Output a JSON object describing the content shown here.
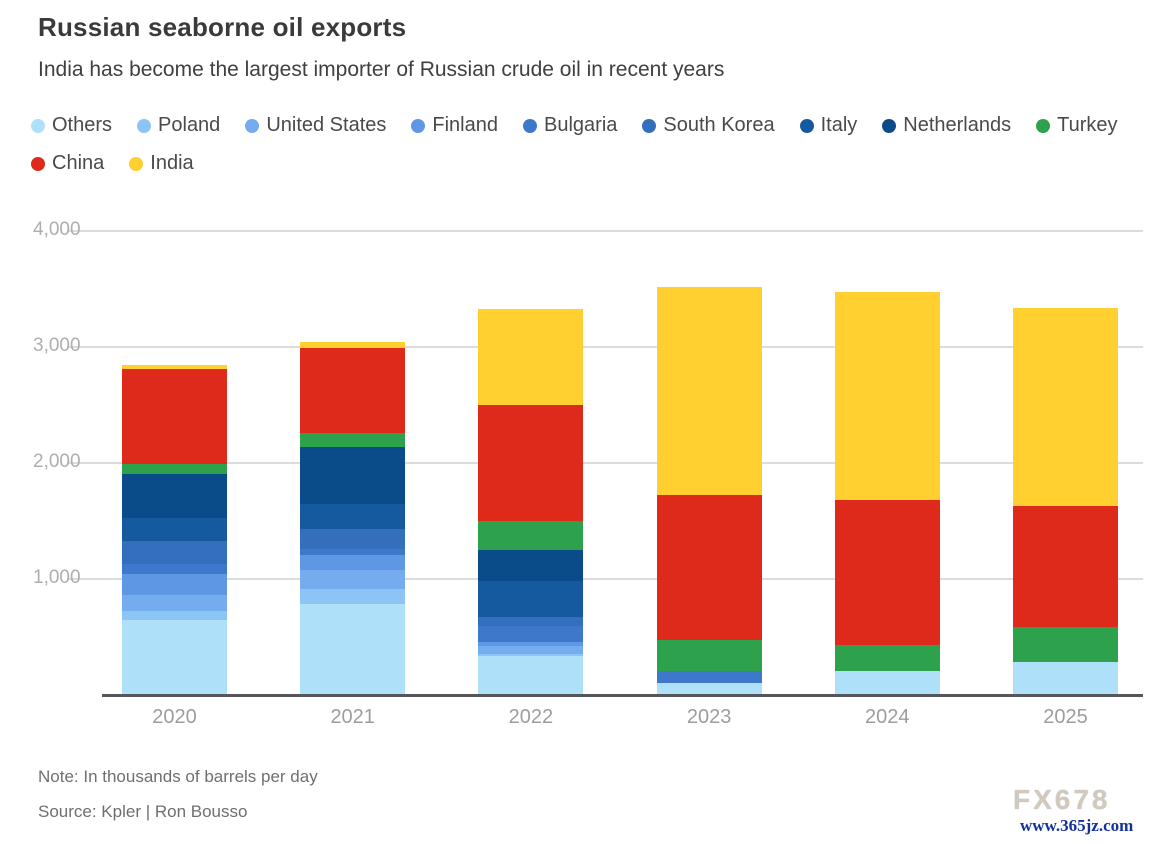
{
  "title": "Russian seaborne oil exports",
  "subtitle": "India has become the largest importer of Russian crude oil in recent years",
  "note": "Note: In thousands of barrels per day",
  "source": "Source: Kpler | Ron Bousso",
  "watermark": {
    "line1": "FX678",
    "line2": "www.365jz.com"
  },
  "chart_data": {
    "type": "bar",
    "stacked": true,
    "title": "Russian seaborne oil exports",
    "unit": "thousands of barrels per day",
    "categories": [
      "2020",
      "2021",
      "2022",
      "2023",
      "2024",
      "2025"
    ],
    "ylim": [
      0,
      4000
    ],
    "yticks": [
      1000,
      2000,
      3000,
      4000
    ],
    "ytick_labels": [
      "1,000",
      "2,000",
      "3,000",
      "4,000"
    ],
    "grid": "horizontal",
    "legend_position": "top",
    "legend_row_break": 9,
    "series": [
      {
        "name": "Others",
        "color": "#AEE0FA",
        "values": [
          645,
          780,
          335,
          100,
          205,
          280
        ]
      },
      {
        "name": "Poland",
        "color": "#8CC4F6",
        "values": [
          80,
          135,
          20,
          0,
          0,
          0
        ]
      },
      {
        "name": "United States",
        "color": "#74ACEF",
        "values": [
          135,
          165,
          65,
          0,
          0,
          0
        ]
      },
      {
        "name": "Finland",
        "color": "#5E97E3",
        "values": [
          185,
          125,
          35,
          0,
          0,
          0
        ]
      },
      {
        "name": "Bulgaria",
        "color": "#3E78CB",
        "values": [
          80,
          50,
          140,
          110,
          0,
          0
        ]
      },
      {
        "name": "South Korea",
        "color": "#336FBC",
        "values": [
          205,
          175,
          75,
          0,
          0,
          0
        ]
      },
      {
        "name": "Italy",
        "color": "#15599F",
        "values": [
          195,
          215,
          315,
          0,
          0,
          0
        ]
      },
      {
        "name": "Netherlands",
        "color": "#0A4B8A",
        "values": [
          380,
          495,
          265,
          0,
          0,
          0
        ]
      },
      {
        "name": "Turkey",
        "color": "#2EA14D",
        "values": [
          85,
          120,
          250,
          265,
          230,
          310
        ]
      },
      {
        "name": "China",
        "color": "#DE2A1B",
        "values": [
          820,
          730,
          1000,
          1245,
          1250,
          1035
        ]
      },
      {
        "name": "India",
        "color": "#FFD02F",
        "values": [
          35,
          55,
          830,
          1800,
          1785,
          1710
        ]
      }
    ]
  }
}
